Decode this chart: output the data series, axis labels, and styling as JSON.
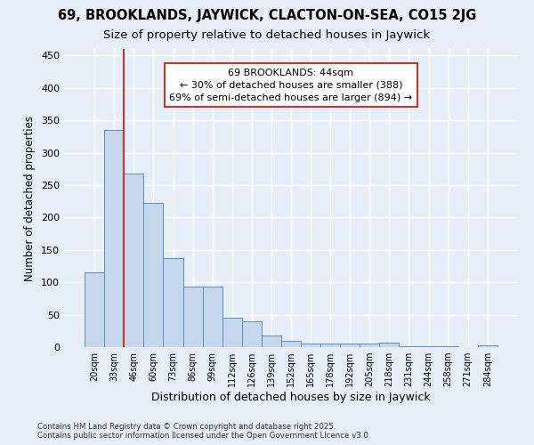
{
  "title1": "69, BROOKLANDS, JAYWICK, CLACTON-ON-SEA, CO15 2JG",
  "title2": "Size of property relative to detached houses in Jaywick",
  "xlabel": "Distribution of detached houses by size in Jaywick",
  "ylabel": "Number of detached properties",
  "categories": [
    "20sqm",
    "33sqm",
    "46sqm",
    "60sqm",
    "73sqm",
    "86sqm",
    "99sqm",
    "112sqm",
    "126sqm",
    "139sqm",
    "152sqm",
    "165sqm",
    "178sqm",
    "192sqm",
    "205sqm",
    "218sqm",
    "231sqm",
    "244sqm",
    "258sqm",
    "271sqm",
    "284sqm"
  ],
  "values": [
    115,
    335,
    268,
    223,
    138,
    93,
    93,
    45,
    40,
    18,
    10,
    6,
    5,
    6,
    5,
    7,
    2,
    1,
    1,
    0,
    3
  ],
  "bar_color": "#c5d8ed",
  "bar_edge_color": "#5b8ec4",
  "background_color": "#e8eef7",
  "grid_color": "#ffffff",
  "vline_x": 1.5,
  "vline_color": "#c0392b",
  "annotation_text": "69 BROOKLANDS: 44sqm\n← 30% of detached houses are smaller (388)\n69% of semi-detached houses are larger (894) →",
  "annotation_box_facecolor": "#ffffff",
  "annotation_box_edgecolor": "#c0392b",
  "ylim": [
    0,
    460
  ],
  "yticks": [
    0,
    50,
    100,
    150,
    200,
    250,
    300,
    350,
    400,
    450
  ],
  "footer": "Contains HM Land Registry data © Crown copyright and database right 2025.\nContains public sector information licensed under the Open Government Licence v3.0.",
  "title_fontsize": 10.5,
  "subtitle_fontsize": 9.5,
  "annot_fontsize": 8.0,
  "xlabel_fontsize": 9,
  "ylabel_fontsize": 8.5
}
